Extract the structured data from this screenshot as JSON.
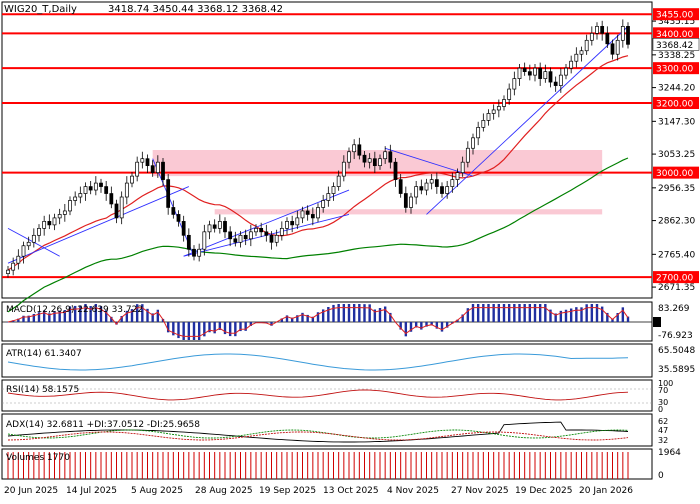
{
  "chart_data": {
    "type": "candlestick",
    "header": {
      "symbol": "WIG20_T,Daily",
      "ohlc": "3418.74 3450.44 3368.12 3368.42"
    },
    "price_panel": {
      "ylim": [
        2640,
        3490
      ],
      "y_ticks": [
        "3435.15",
        "3338.25",
        "3244.20",
        "3147.30",
        "3053.25",
        "2956.35",
        "2862.30",
        "2765.40",
        "2671.35"
      ],
      "levels": [
        {
          "value": 3455,
          "label": "3455.00"
        },
        {
          "value": 3400,
          "label": "3400.00"
        },
        {
          "value": 3300,
          "label": "3300.00"
        },
        {
          "value": 3200,
          "label": "3200.00"
        },
        {
          "value": 3000,
          "label": "3000.00"
        },
        {
          "value": 2700,
          "label": "2700.00"
        }
      ],
      "current_price": {
        "value": 3368.42,
        "label": "3368.42"
      },
      "zones": [
        {
          "x0": 28,
          "x1": 115,
          "y0": 2990,
          "y1": 3065
        },
        {
          "x0": 40,
          "x1": 115,
          "y0": 2880,
          "y1": 2895
        }
      ],
      "close_series": [
        2720,
        2740,
        2760,
        2790,
        2800,
        2820,
        2840,
        2860,
        2850,
        2870,
        2880,
        2890,
        2920,
        2930,
        2940,
        2960,
        2950,
        2970,
        2960,
        2940,
        2910,
        2870,
        2930,
        2970,
        2990,
        3030,
        3040,
        3020,
        3000,
        3030,
        2980,
        2900,
        2880,
        2860,
        2820,
        2780,
        2760,
        2780,
        2830,
        2850,
        2840,
        2860,
        2830,
        2810,
        2800,
        2820,
        2810,
        2830,
        2840,
        2830,
        2820,
        2800,
        2820,
        2840,
        2860,
        2850,
        2870,
        2890,
        2880,
        2870,
        2900,
        2920,
        2940,
        2960,
        2990,
        3030,
        3060,
        3080,
        3050,
        3030,
        3040,
        3020,
        3040,
        3060,
        3030,
        2980,
        2940,
        2900,
        2930,
        2960,
        2950,
        2970,
        2980,
        2960,
        2940,
        2960,
        2980,
        3000,
        3030,
        3070,
        3100,
        3130,
        3150,
        3170,
        3180,
        3190,
        3210,
        3240,
        3270,
        3300,
        3290,
        3280,
        3300,
        3270,
        3290,
        3260,
        3250,
        3280,
        3300,
        3320,
        3340,
        3350,
        3380,
        3400,
        3420,
        3400,
        3370,
        3340,
        3380,
        3420,
        3368.42
      ],
      "ma_red": [
        2900,
        2830
      ],
      "ma_green": [
        2680,
        2960
      ]
    },
    "macd": {
      "label": "MACD(12,26,9) 22.639 33.722",
      "ticks": [
        "83.269",
        "0.00",
        "-76.923"
      ],
      "ylim": [
        -90,
        95
      ]
    },
    "atr": {
      "label": "ATR(14) 61.3407",
      "ticks": [
        "65.5048",
        "35.5895"
      ]
    },
    "rsi": {
      "label": "RSI(14) 58.1575",
      "ticks": [
        "100",
        "70",
        "30",
        "0"
      ]
    },
    "adx": {
      "label": "ADX(14) 32.6811 +DI:37.0512 -DI:25.9658",
      "ticks": [
        "62",
        "47",
        "32"
      ]
    },
    "volume": {
      "label": "Volumes 1770",
      "ticks": [
        "1964",
        "0"
      ]
    },
    "x_labels": [
      "20 Jun 2025",
      "14 Jul 2025",
      "5 Aug 2025",
      "28 Aug 2025",
      "19 Sep 2025",
      "13 Oct 2025",
      "4 Nov 2025",
      "27 Nov 2025",
      "19 Dec 2025",
      "20 Jan 2026"
    ],
    "colors": {
      "up": "#0000ff",
      "down": "#ff0000",
      "level": "#ff0000",
      "zone": "#f9c0cc",
      "ma_red": "#e02020",
      "ma_green": "#008000",
      "trend": "#3030ff",
      "label_bg": "#ff0000",
      "label_text": "#ffffff"
    }
  }
}
